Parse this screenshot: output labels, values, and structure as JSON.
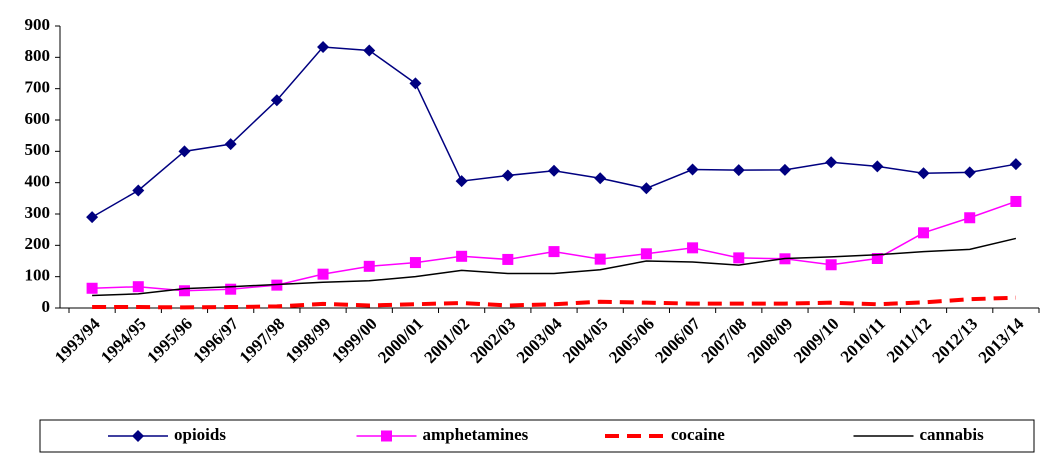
{
  "chart_data": {
    "type": "line",
    "categories": [
      "1993/94",
      "1994/95",
      "1995/96",
      "1996/97",
      "1997/98",
      "1998/99",
      "1999/00",
      "2000/01",
      "2001/02",
      "2002/03",
      "2003/04",
      "2004/05",
      "2005/06",
      "2006/07",
      "2007/08",
      "2008/09",
      "2009/10",
      "2010/11",
      "2011/12",
      "2012/13",
      "2013/14"
    ],
    "series": [
      {
        "name": "opioids",
        "color": "#000080",
        "marker": "diamond",
        "width": 1.5,
        "values": [
          290,
          375,
          500,
          523,
          663,
          833,
          822,
          717,
          405,
          423,
          438,
          414,
          382,
          442,
          440,
          441,
          465,
          452,
          430,
          433,
          459
        ]
      },
      {
        "name": "amphetamines",
        "color": "#ff00ff",
        "marker": "square",
        "width": 1.5,
        "values": [
          63,
          68,
          55,
          60,
          73,
          108,
          133,
          145,
          165,
          155,
          180,
          156,
          173,
          192,
          160,
          157,
          138,
          158,
          240,
          288,
          340
        ]
      },
      {
        "name": "cocaine",
        "color": "#ff0000",
        "dash": "14 8",
        "width": 4,
        "values": [
          3,
          3,
          2,
          3,
          5,
          13,
          8,
          12,
          16,
          8,
          12,
          20,
          17,
          14,
          14,
          14,
          17,
          12,
          18,
          28,
          33
        ]
      },
      {
        "name": "cannabis",
        "color": "#000000",
        "width": 1.5,
        "values": [
          40,
          45,
          62,
          68,
          75,
          82,
          87,
          100,
          120,
          110,
          110,
          122,
          150,
          147,
          137,
          158,
          163,
          170,
          180,
          187,
          222
        ]
      }
    ],
    "ylim": [
      0,
      900
    ],
    "yticks": [
      0,
      100,
      200,
      300,
      400,
      500,
      600,
      700,
      800,
      900
    ],
    "legend": "bottom"
  }
}
